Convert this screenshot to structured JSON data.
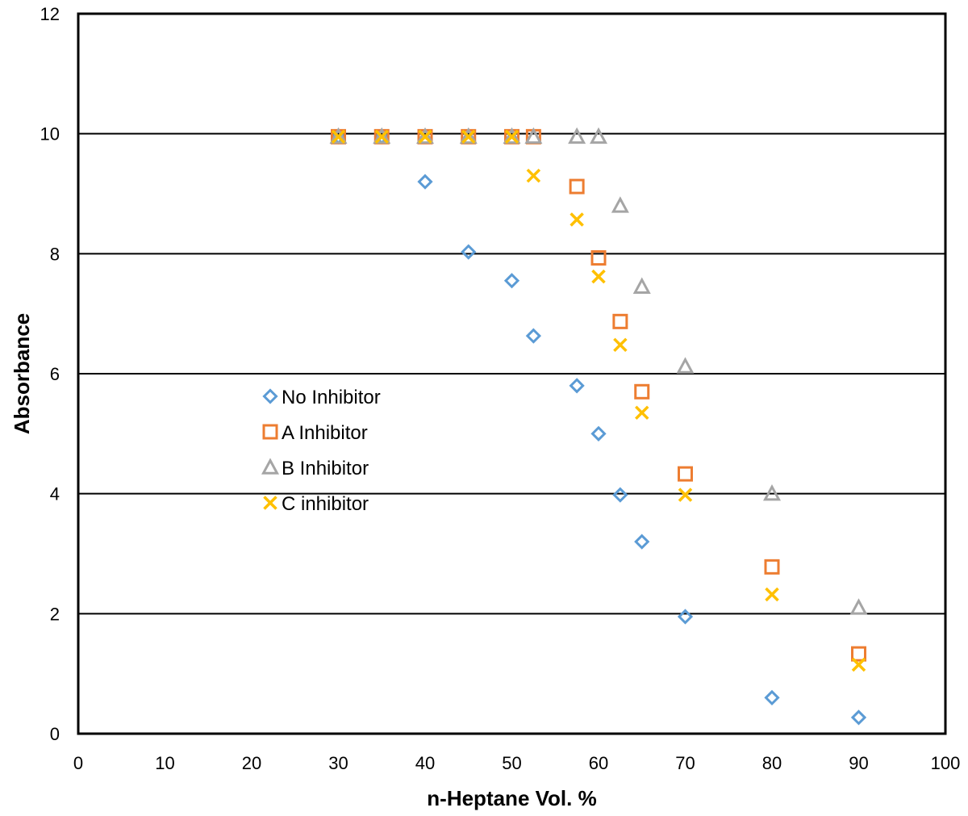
{
  "chart_data": {
    "type": "scatter",
    "xlabel": "n-Heptane Vol. %",
    "ylabel": "Absorbance",
    "xlim": [
      0,
      100
    ],
    "ylim": [
      0,
      12
    ],
    "xticks": [
      0,
      10,
      20,
      30,
      40,
      50,
      60,
      70,
      80,
      90,
      100
    ],
    "yticks": [
      0,
      2,
      4,
      6,
      8,
      10,
      12
    ],
    "grid": "horizontal",
    "legend_placement": "center-left",
    "series": [
      {
        "name": "No Inhibitor",
        "marker": "diamond",
        "color": "#5B9BD5",
        "points": [
          [
            30,
            9.95
          ],
          [
            35,
            9.95
          ],
          [
            40,
            9.2
          ],
          [
            45,
            8.03
          ],
          [
            50,
            7.55
          ],
          [
            52.5,
            6.63
          ],
          [
            57.5,
            5.8
          ],
          [
            60,
            5.0
          ],
          [
            62.5,
            3.98
          ],
          [
            65,
            3.2
          ],
          [
            70,
            1.95
          ],
          [
            80,
            0.6
          ],
          [
            90,
            0.27
          ]
        ]
      },
      {
        "name": "A Inhibitor",
        "marker": "square",
        "color": "#ED7D31",
        "points": [
          [
            30,
            9.95
          ],
          [
            35,
            9.95
          ],
          [
            40,
            9.95
          ],
          [
            45,
            9.95
          ],
          [
            50,
            9.95
          ],
          [
            52.5,
            9.95
          ],
          [
            57.5,
            9.12
          ],
          [
            60,
            7.93
          ],
          [
            62.5,
            6.87
          ],
          [
            65,
            5.7
          ],
          [
            70,
            4.33
          ],
          [
            80,
            2.78
          ],
          [
            90,
            1.33
          ]
        ]
      },
      {
        "name": "B Inhibitor",
        "marker": "triangle",
        "color": "#A5A5A5",
        "points": [
          [
            30,
            9.95
          ],
          [
            35,
            9.95
          ],
          [
            40,
            9.95
          ],
          [
            45,
            9.95
          ],
          [
            50,
            9.95
          ],
          [
            52.5,
            9.95
          ],
          [
            57.5,
            9.95
          ],
          [
            60,
            9.95
          ],
          [
            62.5,
            8.8
          ],
          [
            65,
            7.45
          ],
          [
            70,
            6.12
          ],
          [
            80,
            4.0
          ],
          [
            90,
            2.1
          ]
        ]
      },
      {
        "name": "C inhibitor",
        "marker": "x",
        "color": "#FFC000",
        "points": [
          [
            30,
            9.95
          ],
          [
            35,
            9.95
          ],
          [
            40,
            9.95
          ],
          [
            45,
            9.95
          ],
          [
            50,
            9.95
          ],
          [
            52.5,
            9.3
          ],
          [
            57.5,
            8.57
          ],
          [
            60,
            7.62
          ],
          [
            62.5,
            6.48
          ],
          [
            65,
            5.35
          ],
          [
            70,
            3.98
          ],
          [
            80,
            2.32
          ],
          [
            90,
            1.15
          ]
        ]
      }
    ]
  }
}
